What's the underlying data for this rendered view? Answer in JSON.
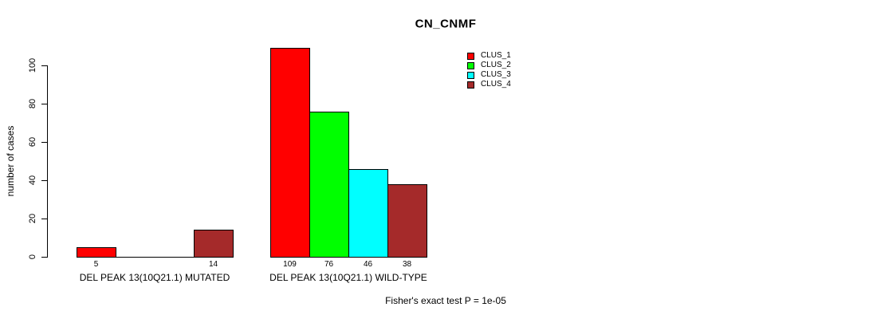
{
  "chart_data": {
    "type": "bar",
    "title": "CN_CNMF",
    "ylabel": "number of cases",
    "xlabel": "",
    "ylim": [
      0,
      100
    ],
    "yticks": [
      0,
      20,
      40,
      60,
      80,
      100
    ],
    "grid": false,
    "legend_position": "top-right-inside",
    "categories": [
      "DEL PEAK 13(10Q21.1) MUTATED",
      "DEL PEAK 13(10Q21.1) WILD-TYPE"
    ],
    "series": [
      {
        "name": "CLUS_1",
        "color": "#ff0000",
        "values": [
          5,
          109
        ]
      },
      {
        "name": "CLUS_2",
        "color": "#00ff00",
        "values": [
          0,
          76
        ]
      },
      {
        "name": "CLUS_3",
        "color": "#00ffff",
        "values": [
          0,
          46
        ]
      },
      {
        "name": "CLUS_4",
        "color": "#a52a2a",
        "values": [
          14,
          38
        ]
      }
    ],
    "bar_value_labels": [
      [
        "5",
        "",
        "",
        "14"
      ],
      [
        "109",
        "76",
        "46",
        "38"
      ]
    ],
    "annotation": "Fisher's exact test P = 1e-05"
  }
}
